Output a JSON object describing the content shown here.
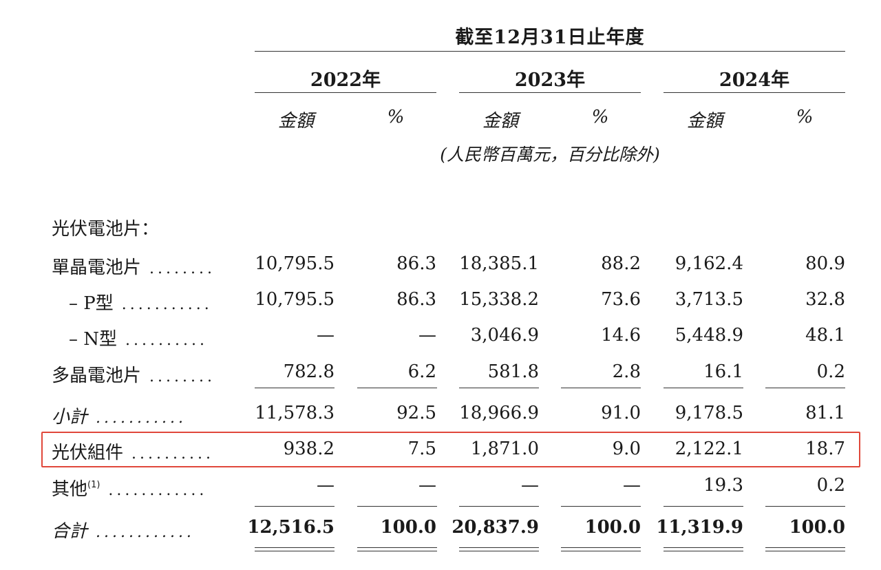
{
  "header": {
    "title": "截至12月31日止年度",
    "years": [
      "2022年",
      "2023年",
      "2024年"
    ],
    "col_amount": "金額",
    "col_pct": "%",
    "unit_note": "(人民幣百萬元，百分比除外)"
  },
  "section_title": "光伏電池片：",
  "rows": [
    {
      "label": "單晶電池片",
      "dots": "........",
      "values": [
        "10,795.5",
        "86.3",
        "18,385.1",
        "88.2",
        "9,162.4",
        "80.9"
      ]
    },
    {
      "label": "– P型",
      "dots": "...........",
      "values": [
        "10,795.5",
        "86.3",
        "15,338.2",
        "73.6",
        "3,713.5",
        "32.8"
      ]
    },
    {
      "label": "– N型",
      "dots": "..........",
      "values": [
        "—",
        "—",
        "3,046.9",
        "14.6",
        "5,448.9",
        "48.1"
      ]
    },
    {
      "label": "多晶電池片",
      "dots": "........",
      "values": [
        "782.8",
        "6.2",
        "581.8",
        "2.8",
        "16.1",
        "0.2"
      ]
    },
    {
      "label": "小計",
      "dots": "...........",
      "values": [
        "11,578.3",
        "92.5",
        "18,966.9",
        "91.0",
        "9,178.5",
        "81.1"
      ]
    },
    {
      "label": "光伏組件",
      "dots": "..........",
      "values": [
        "938.2",
        "7.5",
        "1,871.0",
        "9.0",
        "2,122.1",
        "18.7"
      ]
    },
    {
      "label": "其他",
      "sup": "(1)",
      "dots": "............",
      "values": [
        "—",
        "—",
        "—",
        "—",
        "19.3",
        "0.2"
      ]
    },
    {
      "label": "合計",
      "dots": "............",
      "values": [
        "12,516.5",
        "100.0",
        "20,837.9",
        "100.0",
        "11,319.9",
        "100.0"
      ]
    }
  ]
}
